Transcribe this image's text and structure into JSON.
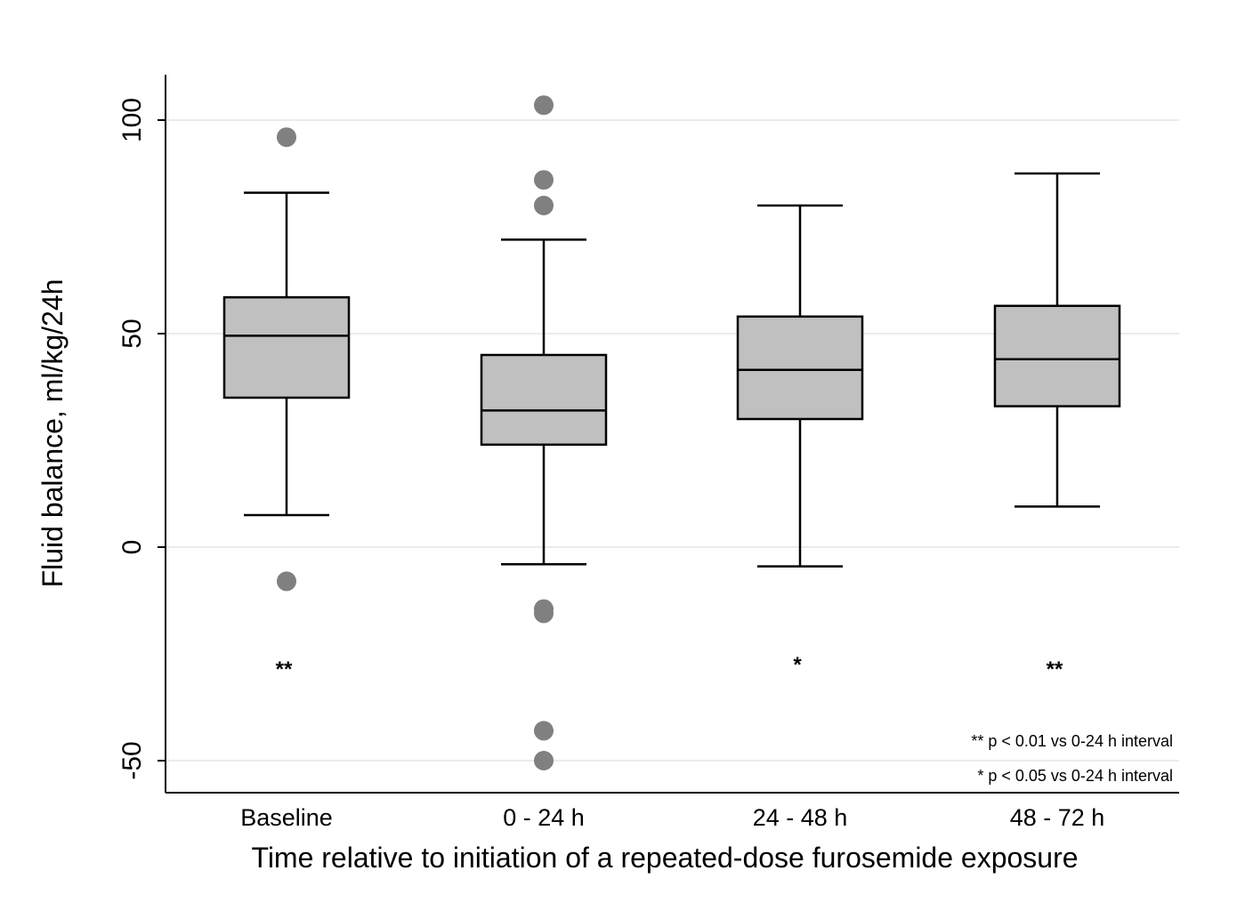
{
  "chart_data": {
    "type": "box",
    "title": "",
    "xlabel": "Time relative to initiation of a repeated-dose furosemide exposure",
    "ylabel": "Fluid balance, ml/kg/24h",
    "ylim": [
      -57.5,
      111
    ],
    "yticks": [
      {
        "value": -50,
        "label": "-50"
      },
      {
        "value": 0,
        "label": "0"
      },
      {
        "value": 50,
        "label": "50"
      },
      {
        "value": 100,
        "label": "100"
      }
    ],
    "grid": true,
    "legend": "none",
    "colors": {
      "box_fill": "#c0c0c0",
      "outlier": "#808080",
      "grid": "#e8ecee",
      "stroke": "#000000"
    },
    "categories": [
      "Baseline",
      "0 - 24 h",
      "24 - 48 h",
      "48 - 72 h"
    ],
    "boxes": [
      {
        "category": "Baseline",
        "whisker_low": 7.5,
        "q1": 35,
        "median": 49.5,
        "q3": 58.5,
        "whisker_high": 83,
        "outliers": [
          96,
          -8
        ],
        "significance": "**"
      },
      {
        "category": "0 - 24 h",
        "whisker_low": -4,
        "q1": 24,
        "median": 32,
        "q3": 45,
        "whisker_high": 72,
        "outliers": [
          103.5,
          86,
          80,
          -14.5,
          -15.5,
          -43,
          -50
        ],
        "significance": ""
      },
      {
        "category": "24 - 48 h",
        "whisker_low": -4.5,
        "q1": 30,
        "median": 41.5,
        "q3": 54,
        "whisker_high": 80,
        "outliers": [],
        "significance": "*"
      },
      {
        "category": "48 - 72 h",
        "whisker_low": 9.5,
        "q1": 33,
        "median": 44,
        "q3": 56.5,
        "whisker_high": 87.5,
        "outliers": [],
        "significance": "**"
      }
    ],
    "annotations": [
      "** p < 0.01 vs 0-24 h interval",
      "* p < 0.05 vs 0-24 h interval"
    ]
  }
}
